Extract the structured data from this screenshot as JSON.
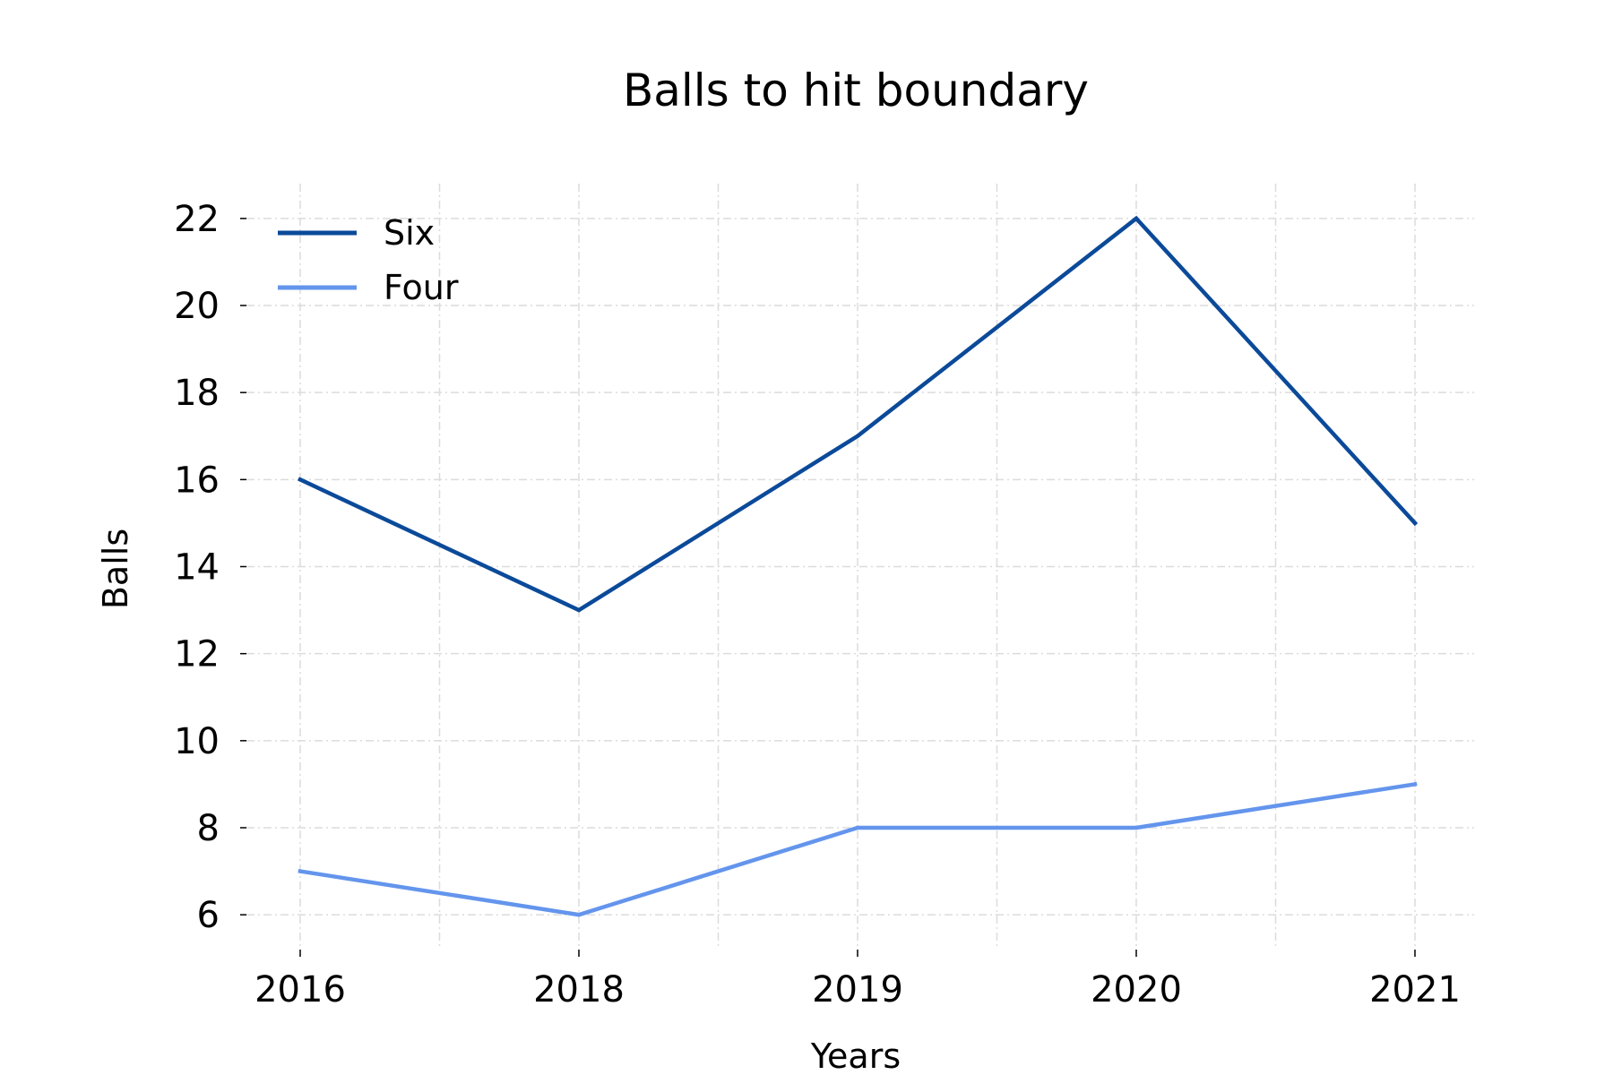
{
  "chart_data": {
    "type": "line",
    "title": "Balls to hit boundary",
    "xlabel": "Years",
    "ylabel": "Balls",
    "categories": [
      "2016",
      "2018",
      "2019",
      "2020",
      "2021"
    ],
    "series": [
      {
        "name": "Six",
        "values": [
          16,
          13,
          17,
          22,
          15
        ],
        "color": "#0b4a99"
      },
      {
        "name": "Four",
        "values": [
          7,
          6,
          8,
          8,
          9
        ],
        "color": "#6495ed"
      }
    ],
    "y_ticks": [
      6,
      8,
      10,
      12,
      14,
      16,
      18,
      20,
      22
    ],
    "ylim": [
      5.2,
      22.8
    ],
    "grid": true,
    "legend_position": "upper-left"
  }
}
